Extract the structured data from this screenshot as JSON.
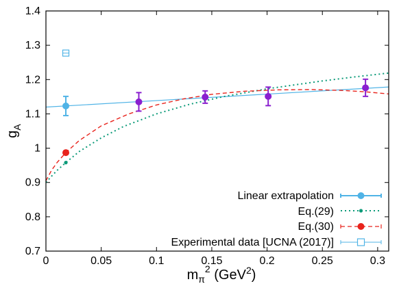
{
  "chart_data": {
    "type": "line",
    "xlabel": {
      "base": "m",
      "sub": "π",
      "sup": "2",
      "unit_pre": " (GeV",
      "unit_sup": "2",
      "unit_post": ")"
    },
    "ylabel": {
      "base": "g",
      "sub": "A"
    },
    "xlim": [
      0,
      0.31
    ],
    "ylim": [
      0.7,
      1.4
    ],
    "x_ticks": [
      0,
      0.05,
      0.1,
      0.15,
      0.2,
      0.25,
      0.3
    ],
    "x_tick_labels": [
      "0",
      "0.05",
      "0.1",
      "0.15",
      "0.2",
      "0.25",
      "0.3"
    ],
    "y_ticks": [
      0.7,
      0.8,
      0.9,
      1.0,
      1.1,
      1.2,
      1.3,
      1.4
    ],
    "y_tick_labels": [
      "0.7",
      "0.8",
      "0.9",
      "1",
      "1.1",
      "1.2",
      "1.3",
      "1.4"
    ],
    "grid": false,
    "legend_position": "bottom-right",
    "lattice_points": {
      "color": "#8a1fcf",
      "points": [
        {
          "x": 0.084,
          "y": 1.135,
          "err": 0.027
        },
        {
          "x": 0.144,
          "y": 1.149,
          "err": 0.018
        },
        {
          "x": 0.201,
          "y": 1.151,
          "err": 0.027
        },
        {
          "x": 0.289,
          "y": 1.176,
          "err": 0.025
        }
      ]
    },
    "series": [
      {
        "name": "Linear extrapolation",
        "color": "#4fb3e6",
        "style": "solid",
        "fit_line": {
          "intercept": 1.1198,
          "slope": 0.189
        },
        "point": {
          "x": 0.018,
          "y": 1.123,
          "err": 0.028
        }
      },
      {
        "name": "Eq.(29)",
        "color": "#0a9a78",
        "style": "dotted",
        "curve": {
          "x": [
            0.0,
            0.005,
            0.01,
            0.018,
            0.03,
            0.05,
            0.07,
            0.1,
            0.13,
            0.16,
            0.2,
            0.25,
            0.28,
            0.31
          ],
          "y": [
            0.9,
            0.918,
            0.935,
            0.958,
            0.99,
            1.03,
            1.063,
            1.1,
            1.128,
            1.15,
            1.173,
            1.196,
            1.208,
            1.219
          ]
        },
        "point": {
          "x": 0.018,
          "y": 0.958
        }
      },
      {
        "name": "Eq.(30)",
        "color": "#e8231c",
        "style": "dashed",
        "curve": {
          "x": [
            0.0,
            0.005,
            0.01,
            0.018,
            0.03,
            0.05,
            0.075,
            0.1,
            0.125,
            0.15,
            0.18,
            0.21,
            0.24,
            0.27,
            0.29,
            0.31
          ],
          "y": [
            0.905,
            0.935,
            0.958,
            0.987,
            1.022,
            1.065,
            1.1,
            1.126,
            1.144,
            1.157,
            1.166,
            1.17,
            1.171,
            1.168,
            1.164,
            1.158
          ]
        },
        "point": {
          "x": 0.018,
          "y": 0.987
        }
      },
      {
        "name": "Experimental data [UCNA (2017)]",
        "color": "#4fb3e6",
        "style": "open-square",
        "point": {
          "x": 0.018,
          "y": 1.2772
        }
      }
    ]
  }
}
